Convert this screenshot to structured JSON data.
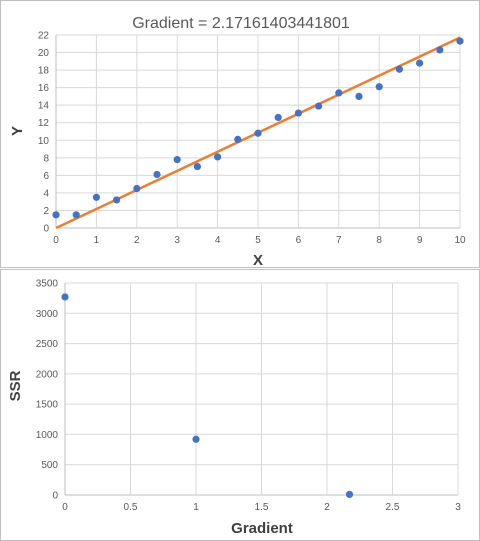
{
  "chart_data": [
    {
      "type": "scatter",
      "title": "Gradient = 2.17161403441801",
      "xlabel": "X",
      "ylabel": "Y",
      "xlim": [
        0,
        10
      ],
      "ylim": [
        0,
        22
      ],
      "xticks": [
        0,
        1,
        2,
        3,
        4,
        5,
        6,
        7,
        8,
        9,
        10
      ],
      "yticks": [
        0,
        2,
        4,
        6,
        8,
        10,
        12,
        14,
        16,
        18,
        20,
        22
      ],
      "grid": true,
      "legend": "none",
      "colors": {
        "points": "#4472c4",
        "line": "#ed7d31"
      },
      "series": [
        {
          "type": "scatter",
          "x": [
            0,
            0.5,
            1,
            1.5,
            2,
            2.5,
            3,
            3.5,
            4,
            4.5,
            5,
            5.5,
            6,
            6.5,
            7,
            7.5,
            8,
            8.5,
            9,
            9.5,
            10
          ],
          "y": [
            1.5,
            1.5,
            3.5,
            3.2,
            4.5,
            6.1,
            7.8,
            7.0,
            8.1,
            10.1,
            10.8,
            12.6,
            13.1,
            13.9,
            15.4,
            15.0,
            16.1,
            18.1,
            18.8,
            20.3,
            21.3
          ]
        },
        {
          "type": "line",
          "x": [
            0,
            1,
            2,
            3,
            4,
            5,
            6,
            7,
            8,
            9,
            10
          ],
          "y": [
            0,
            2.17,
            4.34,
            6.51,
            8.69,
            10.86,
            13.03,
            15.2,
            17.37,
            19.54,
            21.72
          ]
        }
      ]
    },
    {
      "type": "scatter",
      "title": "",
      "xlabel": "Gradient",
      "ylabel": "SSR",
      "xlim": [
        0,
        3
      ],
      "ylim": [
        0,
        3500
      ],
      "xticks": [
        "0",
        "0.5",
        "1",
        "1.5",
        "2",
        "2.5",
        "3"
      ],
      "yticks": [
        0,
        500,
        1000,
        1500,
        2000,
        2500,
        3000,
        3500
      ],
      "grid": true,
      "legend": "none",
      "colors": {
        "points": "#4472c4"
      },
      "series": [
        {
          "type": "scatter",
          "x": [
            0,
            1,
            2.17161403441801
          ],
          "y": [
            3270,
            920,
            10
          ]
        }
      ]
    }
  ]
}
